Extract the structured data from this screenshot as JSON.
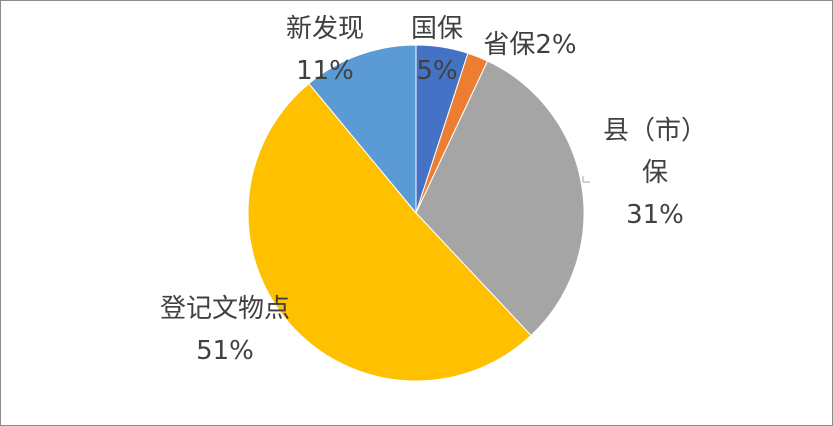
{
  "chart_data": {
    "type": "pie",
    "categories": [
      "国保",
      "省保",
      "县（市）保",
      "登记文物点",
      "新发现"
    ],
    "values": [
      5,
      2,
      31,
      51,
      11
    ],
    "value_labels": [
      "5%",
      "2%",
      "31%",
      "51%",
      "11%"
    ],
    "colors": [
      "#4472c4",
      "#ed7d31",
      "#a5a5a5",
      "#ffc000",
      "#5b9bd5"
    ]
  }
}
